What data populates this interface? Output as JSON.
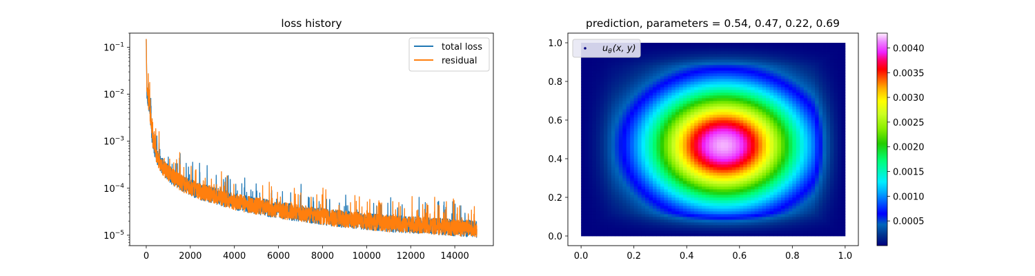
{
  "chart_data": [
    {
      "type": "line",
      "title": "loss history",
      "xlabel": "",
      "ylabel": "",
      "yscale": "log",
      "xlim": [
        -750,
        15750
      ],
      "ylim": [
        6e-06,
        0.2
      ],
      "x_ticks": [
        0,
        2000,
        4000,
        6000,
        8000,
        10000,
        12000,
        14000
      ],
      "x_tick_labels": [
        "0",
        "2000",
        "4000",
        "6000",
        "8000",
        "10000",
        "12000",
        "14000"
      ],
      "y_ticks": [
        1e-05,
        0.0001,
        0.001,
        0.01,
        0.1
      ],
      "y_tick_labels": [
        {
          "base": "10",
          "exp": "−5"
        },
        {
          "base": "10",
          "exp": "−4"
        },
        {
          "base": "10",
          "exp": "−3"
        },
        {
          "base": "10",
          "exp": "−2"
        },
        {
          "base": "10",
          "exp": "−1"
        }
      ],
      "legend_position": "top-right",
      "series": [
        {
          "name": "total loss",
          "color": "#1f77b4",
          "x": [
            0,
            25,
            50,
            100,
            150,
            200,
            250,
            300,
            400,
            500,
            600,
            800,
            1000,
            1500,
            2000,
            2500,
            3000,
            4000,
            5000,
            6000,
            7000,
            8000,
            9000,
            10000,
            11000,
            12000,
            13000,
            14000,
            15000
          ],
          "y": [
            0.15,
            0.01,
            0.009,
            0.007,
            0.005,
            0.003,
            0.0015,
            0.001,
            0.0006,
            0.00045,
            0.00035,
            0.00025,
            0.0002,
            0.00013,
            0.0001,
            8e-05,
            7e-05,
            5e-05,
            4e-05,
            3.3e-05,
            2.8e-05,
            2.4e-05,
            2.1e-05,
            1.9e-05,
            1.7e-05,
            1.6e-05,
            1.5e-05,
            1.4e-05,
            1.3e-05
          ]
        },
        {
          "name": "residual",
          "color": "#ff7f0e",
          "x": [
            0,
            25,
            50,
            100,
            150,
            200,
            250,
            300,
            400,
            500,
            600,
            800,
            1000,
            1500,
            2000,
            2500,
            3000,
            4000,
            5000,
            6000,
            7000,
            8000,
            9000,
            10000,
            11000,
            12000,
            13000,
            14000,
            15000
          ],
          "y": [
            0.15,
            0.01,
            0.009,
            0.007,
            0.005,
            0.003,
            0.0015,
            0.001,
            0.0006,
            0.00045,
            0.00035,
            0.00025,
            0.0002,
            0.00013,
            0.0001,
            8e-05,
            7e-05,
            5e-05,
            4e-05,
            3.3e-05,
            2.8e-05,
            2.4e-05,
            2.1e-05,
            1.9e-05,
            1.7e-05,
            1.6e-05,
            1.5e-05,
            1.4e-05,
            1.3e-05
          ]
        }
      ],
      "noise_band": "the plotted series fluctuate strongly around the listed trend, roughly ×0.6 to ×2.5"
    },
    {
      "type": "heatmap",
      "title": "prediction, parameters = 0.54, 0.47, 0.22, 0.69",
      "xlabel": "",
      "ylabel": "",
      "xlim": [
        -0.05,
        1.05
      ],
      "ylim": [
        -0.05,
        1.05
      ],
      "domain": {
        "x": [
          0,
          1
        ],
        "y": [
          0,
          1
        ]
      },
      "x_ticks": [
        0.0,
        0.2,
        0.4,
        0.6,
        0.8,
        1.0
      ],
      "x_tick_labels": [
        "0.0",
        "0.2",
        "0.4",
        "0.6",
        "0.8",
        "1.0"
      ],
      "y_ticks": [
        0.0,
        0.2,
        0.4,
        0.6,
        0.8,
        1.0
      ],
      "y_tick_labels": [
        "0.0",
        "0.2",
        "0.4",
        "0.6",
        "0.8",
        "1.0"
      ],
      "peak": {
        "x": 0.54,
        "y": 0.47,
        "value": 0.0042
      },
      "value_range": [
        0.0,
        0.0043
      ],
      "colormap": "gist_ncar",
      "legend": {
        "label_prefix": "u",
        "label_sub": "θ",
        "label_suffix": "(x, y)",
        "position": "top-left"
      },
      "colorbar": {
        "ticks": [
          0.0005,
          0.001,
          0.0015,
          0.002,
          0.0025,
          0.003,
          0.0035,
          0.004
        ],
        "tick_labels": [
          "0.0005",
          "0.0010",
          "0.0015",
          "0.0020",
          "0.0025",
          "0.0030",
          "0.0035",
          "0.0040"
        ],
        "range": [
          0.0,
          0.0043
        ]
      }
    }
  ]
}
